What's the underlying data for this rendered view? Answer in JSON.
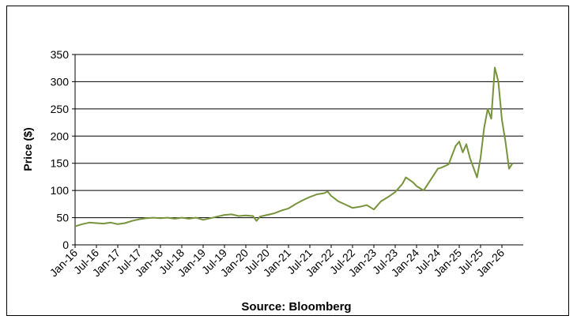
{
  "chart_data": {
    "type": "line",
    "ylabel": "Price ($)",
    "source_label": "Source: Bloomberg",
    "ylim": [
      0,
      350
    ],
    "yticks": [
      0,
      50,
      100,
      150,
      200,
      250,
      300,
      350
    ],
    "xticks": [
      "Jan-16",
      "Jul-16",
      "Jan-17",
      "Jul-17",
      "Jan-18",
      "Jul-18",
      "Jan-19",
      "Jul-19",
      "Jan-20",
      "Jul-20",
      "Jan-21",
      "Jul-21",
      "Jan-22",
      "Jul-22",
      "Jan-23",
      "Jul-23",
      "Jan-24",
      "Jul-24",
      "Jan-25",
      "Jul-25",
      "Jan-26"
    ],
    "grid": "horizontal",
    "line_color": "#77933c",
    "series": [
      {
        "x": [
          "2016-01",
          "2016-03",
          "2016-05",
          "2016-07",
          "2016-09",
          "2016-11",
          "2017-01",
          "2017-03",
          "2017-05",
          "2017-07",
          "2017-09",
          "2017-11",
          "2018-01",
          "2018-03",
          "2018-05",
          "2018-07",
          "2018-09",
          "2018-11",
          "2019-01",
          "2019-03",
          "2019-05",
          "2019-07",
          "2019-09",
          "2019-11",
          "2020-01",
          "2020-03",
          "2020-04",
          "2020-05",
          "2020-07",
          "2020-09",
          "2020-11",
          "2021-01",
          "2021-03",
          "2021-05",
          "2021-07",
          "2021-09",
          "2021-11",
          "2021-12",
          "2022-01",
          "2022-03",
          "2022-05",
          "2022-07",
          "2022-09",
          "2022-11",
          "2023-01",
          "2023-03",
          "2023-05",
          "2023-07",
          "2023-09",
          "2023-10",
          "2023-12",
          "2024-01",
          "2024-03",
          "2024-05",
          "2024-07",
          "2024-08",
          "2024-10",
          "2024-12",
          "2025-01",
          "2025-02",
          "2025-03",
          "2025-04",
          "2025-05",
          "2025-06",
          "2025-07",
          "2025-08",
          "2025-09",
          "2025-10",
          "2025-11",
          "2025-12",
          "2026-01",
          "2026-02",
          "2026-03",
          "2026-04"
        ],
        "y": [
          34,
          38,
          41,
          40,
          39,
          41,
          38,
          40,
          44,
          47,
          49,
          50,
          49,
          50,
          48,
          50,
          48,
          50,
          46,
          49,
          52,
          55,
          56,
          53,
          54,
          53,
          44,
          52,
          55,
          58,
          63,
          67,
          75,
          82,
          88,
          93,
          95,
          98,
          90,
          80,
          74,
          68,
          70,
          73,
          65,
          80,
          88,
          97,
          112,
          124,
          115,
          108,
          100,
          120,
          140,
          142,
          148,
          182,
          190,
          170,
          185,
          160,
          142,
          124,
          160,
          215,
          250,
          232,
          326,
          300,
          230,
          190,
          140,
          150
        ]
      }
    ]
  }
}
